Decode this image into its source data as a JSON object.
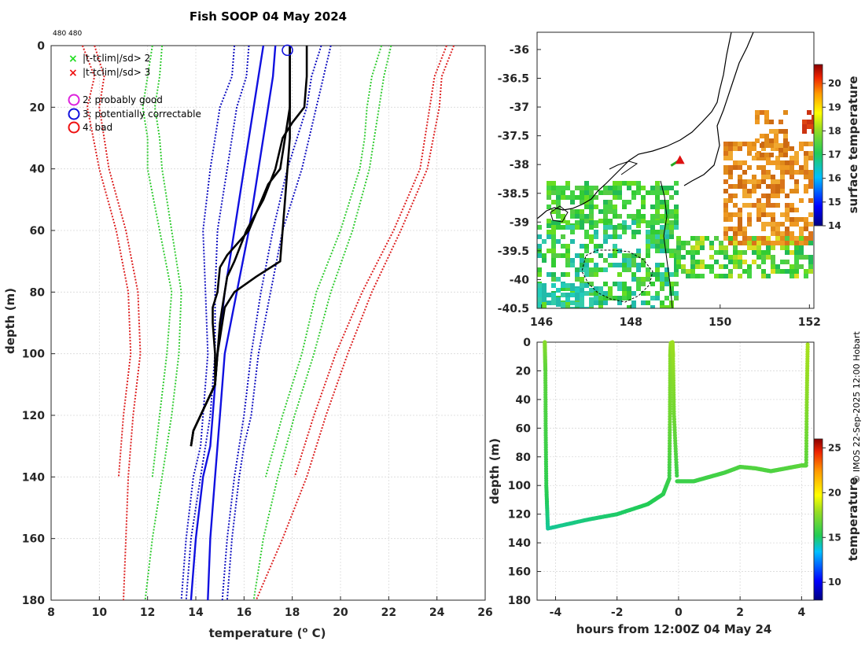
{
  "figure": {
    "title": "Fish SOOP 04 May 2024",
    "small_label": "480 480",
    "credit": "© IMOS 22-Sep-2025 12:00 Hobart"
  },
  "chart_data": [
    {
      "id": "profile",
      "type": "line",
      "xlabel": "temperature (° C)",
      "xlabel_main": "temperature (",
      "xlabel_sup": "o",
      "xlabel_tail": " C)",
      "ylabel": "depth (m)",
      "xlim": [
        8,
        26
      ],
      "ylim": [
        0,
        180
      ],
      "y_reversed": true,
      "xticks": [
        8,
        10,
        12,
        14,
        16,
        18,
        20,
        22,
        24,
        26
      ],
      "yticks": [
        0,
        20,
        40,
        60,
        80,
        100,
        120,
        140,
        160,
        180
      ],
      "grid": true,
      "legend": {
        "placement": "top-left",
        "entries": [
          {
            "marker": "x",
            "color": "#22dd22",
            "label": "|t-tclim|/sd> 2"
          },
          {
            "marker": "x",
            "color": "#ee1111",
            "label": "|t-tclim|/sd> 3"
          },
          {
            "marker": "o",
            "color": "#dd22dd",
            "label": "2: probably good"
          },
          {
            "marker": "o",
            "color": "#1111dd",
            "label": "3: potentially correctable"
          },
          {
            "marker": "o",
            "color": "#ee1111",
            "label": "4: bad"
          }
        ]
      },
      "series": [
        {
          "name": "clim_mean_a",
          "color": "#1010e0",
          "style": "solid",
          "depth": [
            0,
            10,
            20,
            40,
            60,
            80,
            100,
            120,
            130,
            140,
            160,
            180
          ],
          "temp": [
            16.8,
            16.6,
            16.4,
            16.0,
            15.6,
            15.2,
            14.9,
            14.7,
            14.6,
            14.3,
            14.0,
            13.8
          ]
        },
        {
          "name": "clim_mean_b",
          "color": "#1010e0",
          "style": "solid",
          "depth": [
            0,
            10,
            20,
            40,
            60,
            80,
            100,
            120,
            130,
            140,
            160,
            180
          ],
          "temp": [
            17.3,
            17.2,
            17.0,
            16.6,
            16.2,
            15.7,
            15.2,
            15.0,
            14.9,
            14.8,
            14.6,
            14.5
          ]
        },
        {
          "name": "sd1_lo",
          "color": "#1010c0",
          "style": "dotted",
          "depth": [
            0,
            10,
            20,
            40,
            60,
            80,
            100,
            120,
            130,
            140,
            160,
            180
          ],
          "temp": [
            15.6,
            15.5,
            15.0,
            14.6,
            14.3,
            14.4,
            14.5,
            14.3,
            14.2,
            13.9,
            13.6,
            13.4
          ]
        },
        {
          "name": "sd1_hi",
          "color": "#1010c0",
          "style": "dotted",
          "depth": [
            0,
            10,
            20,
            40,
            60,
            80,
            100,
            120,
            130,
            140,
            160,
            180
          ],
          "temp": [
            19.2,
            18.8,
            18.6,
            17.8,
            17.2,
            16.7,
            16.3,
            16.0,
            15.8,
            15.6,
            15.3,
            15.1
          ]
        },
        {
          "name": "sd1_lo2",
          "color": "#1010c0",
          "style": "dotted",
          "depth": [
            0,
            10,
            20,
            40,
            60,
            80,
            100,
            120,
            130,
            140,
            160,
            180
          ],
          "temp": [
            16.2,
            16.1,
            15.7,
            15.3,
            14.9,
            14.8,
            14.8,
            14.6,
            14.4,
            14.2,
            13.8,
            13.6
          ]
        },
        {
          "name": "sd1_hi2",
          "color": "#1010c0",
          "style": "dotted",
          "depth": [
            0,
            10,
            20,
            40,
            60,
            80,
            100,
            120,
            130,
            140,
            160,
            180
          ],
          "temp": [
            19.6,
            19.3,
            19.0,
            18.4,
            17.6,
            17.1,
            16.6,
            16.3,
            16.0,
            15.8,
            15.5,
            15.3
          ]
        },
        {
          "name": "sd2_lo",
          "color": "#33cc33",
          "style": "dotted",
          "depth": [
            0,
            10,
            20,
            30,
            40,
            60,
            80,
            100,
            120,
            140
          ],
          "temp": [
            12.2,
            12.0,
            11.8,
            12.0,
            12.0,
            12.5,
            13.0,
            12.8,
            12.5,
            12.2
          ]
        },
        {
          "name": "sd2_lo2",
          "color": "#33cc33",
          "style": "dotted",
          "depth": [
            0,
            10,
            20,
            30,
            40,
            60,
            80,
            100,
            120,
            140,
            160,
            180
          ],
          "temp": [
            12.6,
            12.5,
            12.3,
            12.5,
            12.6,
            13.0,
            13.4,
            13.3,
            13.0,
            12.6,
            12.2,
            11.9
          ]
        },
        {
          "name": "sd2_hi",
          "color": "#33cc33",
          "style": "dotted",
          "depth": [
            0,
            10,
            20,
            30,
            40,
            60,
            80,
            100,
            120,
            140
          ],
          "temp": [
            21.7,
            21.3,
            21.1,
            21.0,
            20.8,
            20.0,
            19.0,
            18.4,
            17.6,
            16.9
          ]
        },
        {
          "name": "sd2_hi2",
          "color": "#33cc33",
          "style": "dotted",
          "depth": [
            0,
            10,
            20,
            30,
            40,
            60,
            80,
            100,
            120,
            140,
            160,
            180
          ],
          "temp": [
            22.1,
            21.8,
            21.6,
            21.4,
            21.2,
            20.5,
            19.6,
            18.9,
            18.1,
            17.4,
            16.8,
            16.4
          ]
        },
        {
          "name": "sd3_lo",
          "color": "#dd2222",
          "style": "dotted",
          "depth": [
            0,
            10,
            20,
            40,
            60,
            80,
            100,
            120,
            140
          ],
          "temp": [
            9.3,
            9.8,
            9.5,
            10.0,
            10.7,
            11.2,
            11.3,
            11.0,
            10.8
          ]
        },
        {
          "name": "sd3_lo2",
          "color": "#dd2222",
          "style": "dotted",
          "depth": [
            0,
            10,
            20,
            40,
            60,
            80,
            100,
            120,
            140,
            160,
            180
          ],
          "temp": [
            9.8,
            10.2,
            10.0,
            10.4,
            11.1,
            11.6,
            11.7,
            11.4,
            11.2,
            11.1,
            11.0
          ]
        },
        {
          "name": "sd3_hi",
          "color": "#dd2222",
          "style": "dotted",
          "depth": [
            0,
            10,
            20,
            40,
            60,
            80,
            100,
            120,
            140
          ],
          "temp": [
            24.4,
            23.9,
            23.7,
            23.3,
            22.2,
            20.9,
            19.8,
            18.9,
            18.1
          ]
        },
        {
          "name": "sd3_hi2",
          "color": "#dd2222",
          "style": "dotted",
          "depth": [
            0,
            10,
            20,
            40,
            60,
            80,
            100,
            120,
            140,
            160,
            180
          ],
          "temp": [
            24.7,
            24.2,
            24.1,
            23.6,
            22.5,
            21.3,
            20.3,
            19.4,
            18.6,
            17.6,
            16.5
          ]
        },
        {
          "name": "xbt_profile_a",
          "color": "#000000",
          "style": "solid",
          "depth": [
            0,
            10,
            20,
            30,
            40,
            50,
            60,
            70,
            75,
            80,
            85,
            90,
            95,
            100,
            110,
            115,
            120,
            125,
            130
          ],
          "temp": [
            17.9,
            17.9,
            17.9,
            17.9,
            17.8,
            17.7,
            17.6,
            17.5,
            16.5,
            15.6,
            15.2,
            15.1,
            15.0,
            14.9,
            14.8,
            14.5,
            14.2,
            13.9,
            13.8
          ]
        },
        {
          "name": "xbt_profile_b",
          "color": "#000000",
          "style": "solid",
          "depth": [
            0,
            10,
            20,
            25,
            30,
            40,
            50,
            60,
            70,
            75,
            80,
            85,
            90,
            100,
            110,
            115,
            120,
            125,
            130
          ],
          "temp": [
            18.6,
            18.6,
            18.5,
            18.0,
            17.6,
            17.3,
            16.8,
            16.1,
            15.6,
            15.3,
            15.2,
            15.1,
            15.0,
            14.9,
            14.8,
            14.5,
            14.2,
            13.9,
            13.8
          ]
        },
        {
          "name": "xbt_profile_c",
          "color": "#000000",
          "style": "solid",
          "depth": [
            0,
            20,
            40,
            45,
            60,
            68,
            72,
            80,
            85,
            90,
            100,
            110,
            115,
            120,
            125,
            130
          ],
          "temp": [
            17.9,
            17.9,
            17.5,
            17.0,
            16.2,
            15.3,
            15.0,
            14.9,
            14.7,
            14.7,
            14.8,
            14.8,
            14.5,
            14.2,
            13.9,
            13.8
          ]
        }
      ],
      "flag_marker": {
        "temp": 17.8,
        "depth": 1.5,
        "color": "#1111dd",
        "meaning": "3: potentially correctable"
      }
    },
    {
      "id": "map",
      "type": "heatmap",
      "xlim": [
        145.9,
        152.1
      ],
      "ylim": [
        -40.5,
        -35.7
      ],
      "xticks": [
        146,
        148,
        150,
        152
      ],
      "yticks": [
        -36,
        -36.5,
        -37,
        -37.5,
        -38,
        -38.5,
        -39,
        -39.5,
        -40,
        -40.5
      ],
      "colorbar": {
        "label": "surface temperature",
        "range": [
          14,
          20.8
        ],
        "ticks": [
          14,
          15,
          16,
          17,
          18,
          19,
          20
        ]
      },
      "ship_track": {
        "lon": [
          148.9,
          149.1
        ],
        "lat": [
          -38.02,
          -37.92
        ]
      }
    },
    {
      "id": "depth_time",
      "type": "scatter",
      "xlabel": "hours from 12:00Z 04 May 24",
      "ylabel": "depth (m)",
      "xlim": [
        -4.6,
        4.4
      ],
      "ylim": [
        0,
        180
      ],
      "y_reversed": true,
      "xticks": [
        -4,
        -2,
        0,
        2,
        4
      ],
      "yticks": [
        0,
        20,
        40,
        60,
        80,
        100,
        120,
        140,
        160,
        180
      ],
      "colorbar": {
        "label": "temperature",
        "range": [
          8,
          26
        ],
        "ticks": [
          10,
          15,
          20,
          25
        ]
      },
      "segments": [
        {
          "hours": [
            -4.35,
            -4.33,
            -4.32,
            -4.3,
            -4.25
          ],
          "depth": [
            0,
            20,
            60,
            100,
            130
          ],
          "temp": [
            17.5,
            16.5,
            16.0,
            15.5,
            14.5
          ]
        },
        {
          "hours": [
            -4.25,
            -3.0,
            -2.0,
            -1.0,
            -0.5,
            -0.3,
            -0.28,
            -0.27,
            -0.25
          ],
          "depth": [
            130,
            124,
            120,
            113,
            106,
            95,
            50,
            10,
            0
          ],
          "temp": [
            14.5,
            14.8,
            15.0,
            15.2,
            15.4,
            15.8,
            17.0,
            17.5,
            17.8
          ]
        },
        {
          "hours": [
            -0.2,
            -0.18,
            -0.15,
            -0.05
          ],
          "depth": [
            0,
            10,
            50,
            95
          ],
          "temp": [
            18.0,
            17.8,
            17.0,
            15.8
          ]
        },
        {
          "hours": [
            -0.05,
            0.5,
            1.0,
            1.5,
            2.0,
            2.5,
            3.0,
            3.5,
            4.0,
            4.15,
            4.17,
            4.2
          ],
          "depth": [
            97,
            97,
            94,
            91,
            87,
            88,
            90,
            88,
            86,
            86,
            40,
            0
          ],
          "temp": [
            15.8,
            15.8,
            15.9,
            16.0,
            16.2,
            16.3,
            16.2,
            16.3,
            16.5,
            16.5,
            17.5,
            18.2
          ]
        }
      ]
    }
  ]
}
